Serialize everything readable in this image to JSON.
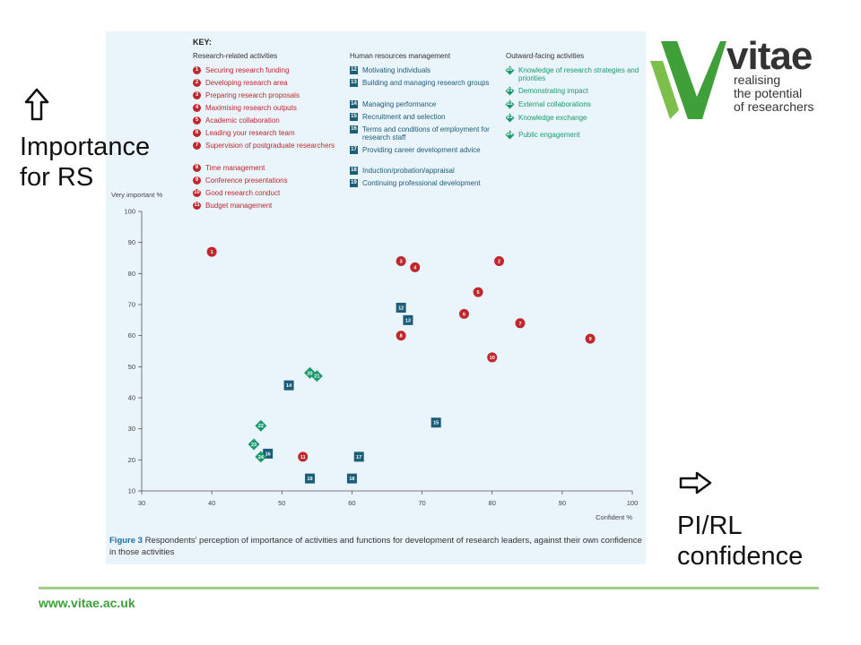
{
  "left_label": "Importance for RS",
  "left_label_lines": [
    "Importance",
    "for RS"
  ],
  "right_label_lines": [
    "PI/RL",
    "confidence"
  ],
  "logo": {
    "word": "vitae",
    "tagline_lines": [
      "realising",
      "the potential",
      "of researchers"
    ]
  },
  "footer_url": "www.vitae.ac.uk",
  "caption": {
    "label": "Figure 3",
    "text": "Respondents' perception of importance of activities and functions for development of research leaders, against their own confidence in those activities"
  },
  "key": {
    "title": "KEY:",
    "groups": [
      {
        "heading": "Research-related activities",
        "items": [
          {
            "n": "1",
            "label": "Securing research funding"
          },
          {
            "n": "2",
            "label": "Developing research area"
          },
          {
            "n": "3",
            "label": "Preparing research proposals"
          },
          {
            "n": "4",
            "label": "Maximising research outputs"
          },
          {
            "n": "5",
            "label": "Academic collaboration"
          },
          {
            "n": "6",
            "label": "Leading your research team"
          },
          {
            "n": "7",
            "label": "Supervision of postgraduate researchers"
          },
          {
            "n": "8",
            "label": "Time management"
          },
          {
            "n": "9",
            "label": "Conference presentations"
          },
          {
            "n": "10",
            "label": "Good research conduct"
          },
          {
            "n": "11",
            "label": "Budget management"
          }
        ]
      },
      {
        "heading": "Human resources management",
        "items": [
          {
            "n": "12",
            "label": "Motivating individuals"
          },
          {
            "n": "13",
            "label": "Building and managing research groups"
          },
          {
            "n": "14",
            "label": "Managing performance"
          },
          {
            "n": "15",
            "label": "Recruitment and selection"
          },
          {
            "n": "16",
            "label": "Terms and conditions of employment for research staff"
          },
          {
            "n": "17",
            "label": "Providing career development advice"
          },
          {
            "n": "18",
            "label": "Induction/probation/appraisal"
          },
          {
            "n": "19",
            "label": "Continuing professional development"
          }
        ]
      },
      {
        "heading": "Outward-facing activities",
        "items": [
          {
            "n": "20",
            "label": "Knowledge of research strategies and priorities"
          },
          {
            "n": "21",
            "label": "Demonstrating impact"
          },
          {
            "n": "22",
            "label": "External collaborations"
          },
          {
            "n": "23",
            "label": "Knowledge exchange"
          },
          {
            "n": "24",
            "label": "Public engagement"
          }
        ]
      }
    ]
  },
  "chart_data": {
    "type": "scatter",
    "xlabel": "Confident %",
    "ylabel": "Very important %",
    "xlim": [
      30,
      100
    ],
    "ylim": [
      10,
      100
    ],
    "xticks": [
      30,
      40,
      50,
      60,
      70,
      80,
      90,
      100
    ],
    "yticks": [
      10,
      20,
      30,
      40,
      50,
      60,
      70,
      80,
      90,
      100
    ],
    "series": [
      {
        "name": "Research-related activities",
        "marker": "circle",
        "color": "#c0272d",
        "points": [
          {
            "id": "1",
            "x": 40,
            "y": 87
          },
          {
            "id": "2",
            "x": 81,
            "y": 84
          },
          {
            "id": "3",
            "x": 67,
            "y": 84
          },
          {
            "id": "4",
            "x": 69,
            "y": 82
          },
          {
            "id": "5",
            "x": 78,
            "y": 74
          },
          {
            "id": "6",
            "x": 76,
            "y": 67
          },
          {
            "id": "7",
            "x": 84,
            "y": 64
          },
          {
            "id": "8",
            "x": 67,
            "y": 60
          },
          {
            "id": "9",
            "x": 94,
            "y": 59
          },
          {
            "id": "10",
            "x": 80,
            "y": 53
          },
          {
            "id": "11",
            "x": 53,
            "y": 21
          }
        ]
      },
      {
        "name": "Human resources management",
        "marker": "square",
        "color": "#1c5d79",
        "points": [
          {
            "id": "12",
            "x": 67,
            "y": 69
          },
          {
            "id": "13",
            "x": 68,
            "y": 65
          },
          {
            "id": "14",
            "x": 51,
            "y": 44
          },
          {
            "id": "15",
            "x": 72,
            "y": 32
          },
          {
            "id": "16",
            "x": 48,
            "y": 22
          },
          {
            "id": "17",
            "x": 61,
            "y": 21
          },
          {
            "id": "18",
            "x": 60,
            "y": 14
          },
          {
            "id": "19",
            "x": 54,
            "y": 14
          }
        ]
      },
      {
        "name": "Outward-facing activities",
        "marker": "diamond",
        "color": "#1a9a6c",
        "points": [
          {
            "id": "20",
            "x": 54,
            "y": 48
          },
          {
            "id": "21",
            "x": 55,
            "y": 47
          },
          {
            "id": "22",
            "x": 47,
            "y": 31
          },
          {
            "id": "23",
            "x": 46,
            "y": 25
          },
          {
            "id": "24",
            "x": 47,
            "y": 21
          }
        ]
      }
    ]
  }
}
